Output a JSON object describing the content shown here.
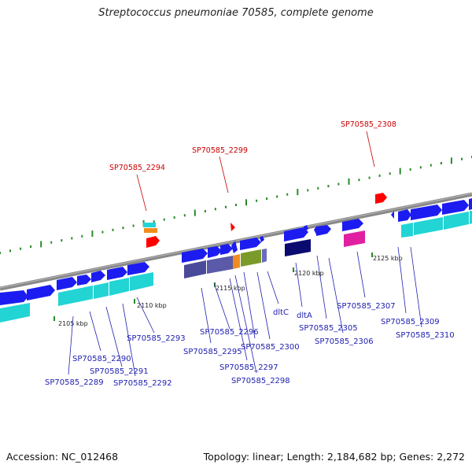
{
  "title": "Streptococcus pneumoniae 70585, complete genome",
  "accession_text": "Accession: NC_012468",
  "topology_text": "Topology: linear; Length: 2,184,682 bp; Genes: 2,272",
  "colors": {
    "backbone": "#8c8c8c",
    "gene_forward": "#1c1cf0",
    "highlight": "#ff0000",
    "label_blue": "#2020b0",
    "label_red": "#cc0000",
    "cyan_feature": "#22d4d4",
    "tick_green": "#2a8a2a"
  },
  "ticks": [
    {
      "id": "tick-2105",
      "label": "2105 kbp"
    },
    {
      "id": "tick-2110",
      "label": "2110 kbp"
    },
    {
      "id": "tick-2115",
      "label": "2115 kbp"
    },
    {
      "id": "tick-2120",
      "label": "2120 kbp"
    },
    {
      "id": "tick-2125",
      "label": "2125 kbp"
    }
  ],
  "highlighted_genes": [
    {
      "id": "SP70585_2294",
      "label": "SP70585_2294"
    },
    {
      "id": "SP70585_2299",
      "label": "SP70585_2299"
    },
    {
      "id": "SP70585_2308",
      "label": "SP70585_2308"
    }
  ],
  "gene_labels": [
    {
      "id": "SP70585_2289",
      "label": "SP70585_2289"
    },
    {
      "id": "SP70585_2290",
      "label": "SP70585_2290"
    },
    {
      "id": "SP70585_2291",
      "label": "SP70585_2291"
    },
    {
      "id": "SP70585_2292",
      "label": "SP70585_2292"
    },
    {
      "id": "SP70585_2293",
      "label": "SP70585_2293"
    },
    {
      "id": "SP70585_2295",
      "label": "SP70585_2295"
    },
    {
      "id": "SP70585_2296",
      "label": "SP70585_2296"
    },
    {
      "id": "SP70585_2297",
      "label": "SP70585_2297"
    },
    {
      "id": "SP70585_2298",
      "label": "SP70585_2298"
    },
    {
      "id": "SP70585_2300",
      "label": "SP70585_2300"
    },
    {
      "id": "dltC",
      "label": "dltC"
    },
    {
      "id": "dltA",
      "label": "dltA"
    },
    {
      "id": "SP70585_2305",
      "label": "SP70585_2305"
    },
    {
      "id": "SP70585_2306",
      "label": "SP70585_2306"
    },
    {
      "id": "SP70585_2307",
      "label": "SP70585_2307"
    },
    {
      "id": "SP70585_2309",
      "label": "SP70585_2309"
    },
    {
      "id": "SP70585_2310",
      "label": "SP70585_2310"
    }
  ]
}
